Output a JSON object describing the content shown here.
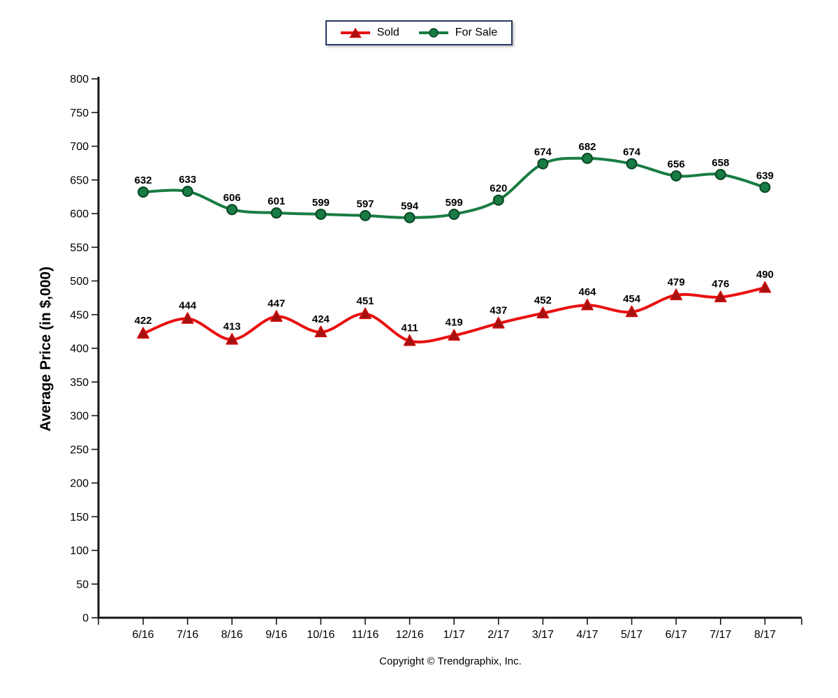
{
  "chart_data": {
    "type": "line",
    "categories": [
      "6/16",
      "7/16",
      "8/16",
      "9/16",
      "10/16",
      "11/16",
      "12/16",
      "1/17",
      "2/17",
      "3/17",
      "4/17",
      "5/17",
      "6/17",
      "7/17",
      "8/17"
    ],
    "series": [
      {
        "name": "Sold",
        "values": [
          422,
          444,
          413,
          447,
          424,
          451,
          411,
          419,
          437,
          452,
          464,
          454,
          479,
          476,
          490
        ],
        "color": "#E90F0F",
        "marker": "triangle",
        "marker_fill": "#A31111",
        "marker_stroke": "#D30E0E"
      },
      {
        "name": "For Sale",
        "values": [
          632,
          633,
          606,
          601,
          599,
          597,
          594,
          599,
          620,
          674,
          682,
          674,
          656,
          658,
          639
        ],
        "color": "#187C44",
        "marker": "circle",
        "marker_fill": "#187C44",
        "marker_stroke": "#0A4423"
      }
    ],
    "title": "",
    "xlabel": "",
    "ylabel": "Average Price (in $,000)",
    "ylim": [
      0,
      800
    ],
    "ytick_step": 50,
    "grid": false,
    "legend_position": "top-center",
    "smooth": true
  },
  "colors": {
    "axis": "#161616",
    "legend_border": "#2B3A63",
    "text": "#000000"
  },
  "footer": {
    "copyright": "Copyright © Trendgraphix, Inc."
  }
}
